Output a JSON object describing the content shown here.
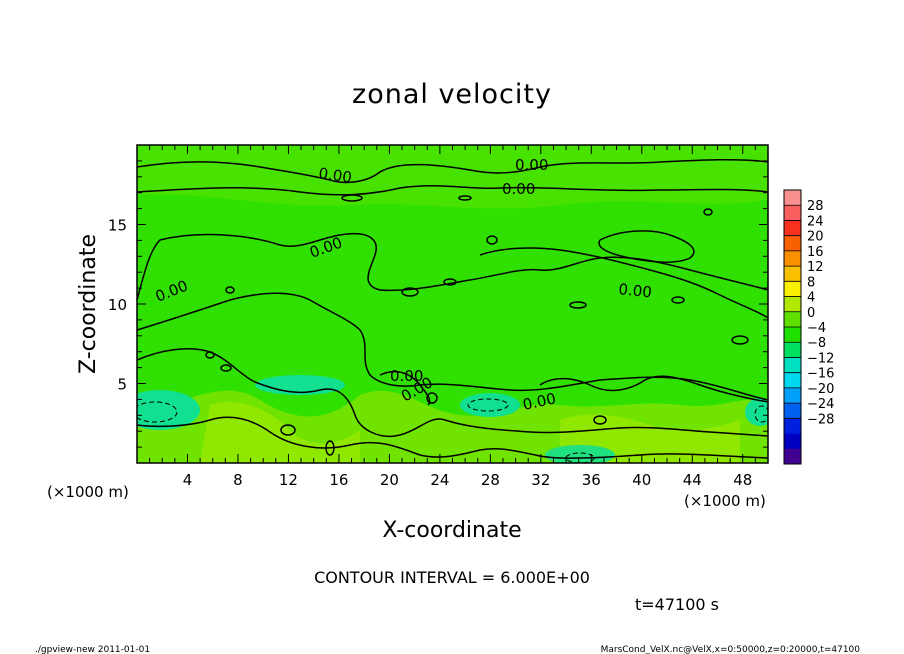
{
  "chart_data": {
    "type": "heatmap",
    "title": "zonal velocity",
    "xlabel": "X-coordinate",
    "ylabel": "Z-coordinate",
    "x_units": "(×1000 m)",
    "y_units": "(×1000 m)",
    "xlim": [
      0,
      50
    ],
    "ylim": [
      0,
      20
    ],
    "x_ticks": [
      4,
      8,
      12,
      16,
      20,
      24,
      28,
      32,
      36,
      40,
      44,
      48
    ],
    "y_ticks": [
      5,
      10,
      15
    ],
    "contour_interval_text": "CONTOUR INTERVAL = 6.000E+00",
    "time_text": "t=47100 s",
    "contour_labels": [
      "0.00",
      "0.00",
      "0.00",
      "0.00",
      "0.00",
      "0.00",
      "0.00",
      "0.00",
      "0.00"
    ],
    "colorbar": {
      "levels": [
        28,
        24,
        20,
        16,
        12,
        8,
        4,
        0,
        -4,
        -8,
        -12,
        -16,
        -20,
        -24,
        -28
      ],
      "colors": [
        "#f89090",
        "#f86060",
        "#f83020",
        "#f86000",
        "#f89000",
        "#f8c000",
        "#f8f000",
        "#b0e800",
        "#60e000",
        "#20e000",
        "#00e060",
        "#00e0c0",
        "#00d8f0",
        "#00a0f8",
        "#0060f0",
        "#0020e0",
        "#0000c0",
        "#400090"
      ]
    }
  },
  "footer": {
    "left": "./gpview-new  2011-01-01",
    "right": "MarsCond_VelX.nc@VelX,x=0:50000,z=0:20000,t=47100"
  }
}
